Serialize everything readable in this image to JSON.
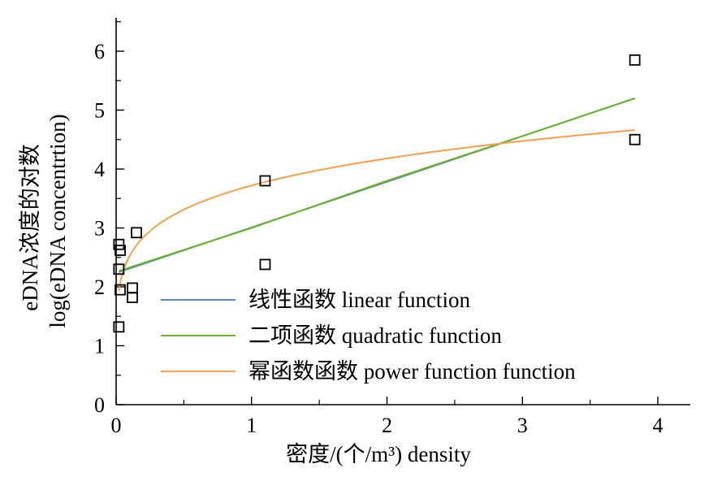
{
  "chart_data": {
    "type": "scatter",
    "xlabel": "密度/(个/m³) density",
    "ylabel_line1": "eDNA浓度的对数",
    "ylabel_line2": "log(eDNA concentrtion)",
    "xlim": [
      0,
      4.2
    ],
    "ylim": [
      0,
      6.5
    ],
    "xticks": [
      "0",
      "1",
      "2",
      "3",
      "4"
    ],
    "yticks": [
      "0",
      "1",
      "2",
      "3",
      "4",
      "5",
      "6"
    ],
    "grid": false,
    "legend_position": "bottom-right",
    "points": [
      {
        "x": 0.02,
        "y": 2.72
      },
      {
        "x": 0.03,
        "y": 2.62
      },
      {
        "x": 0.02,
        "y": 2.3
      },
      {
        "x": 0.03,
        "y": 1.95
      },
      {
        "x": 0.02,
        "y": 1.32
      },
      {
        "x": 0.12,
        "y": 1.98
      },
      {
        "x": 0.12,
        "y": 1.82
      },
      {
        "x": 0.15,
        "y": 2.92
      },
      {
        "x": 1.1,
        "y": 3.8
      },
      {
        "x": 1.1,
        "y": 2.38
      },
      {
        "x": 3.83,
        "y": 5.85
      },
      {
        "x": 3.83,
        "y": 4.5
      }
    ],
    "series": [
      {
        "name": "线性函数 linear function",
        "color": "#5b86c5",
        "kind": "linear",
        "x": [
          0.02,
          3.83
        ],
        "values": [
          2.25,
          5.2
        ]
      },
      {
        "name": "二项函数 quadratic function",
        "color": "#6cb12f",
        "kind": "quadratic",
        "x": [
          0.02,
          1.0,
          2.0,
          3.0,
          3.83
        ],
        "values": [
          2.27,
          3.0,
          3.8,
          4.56,
          5.2
        ]
      },
      {
        "name": "幂函数函数  power function function",
        "color": "#f0a050",
        "kind": "power",
        "x": [
          0.02,
          0.1,
          0.5,
          1.0,
          2.0,
          3.0,
          3.83
        ],
        "values": [
          1.95,
          2.75,
          3.35,
          3.72,
          4.15,
          4.45,
          4.65
        ]
      }
    ]
  }
}
